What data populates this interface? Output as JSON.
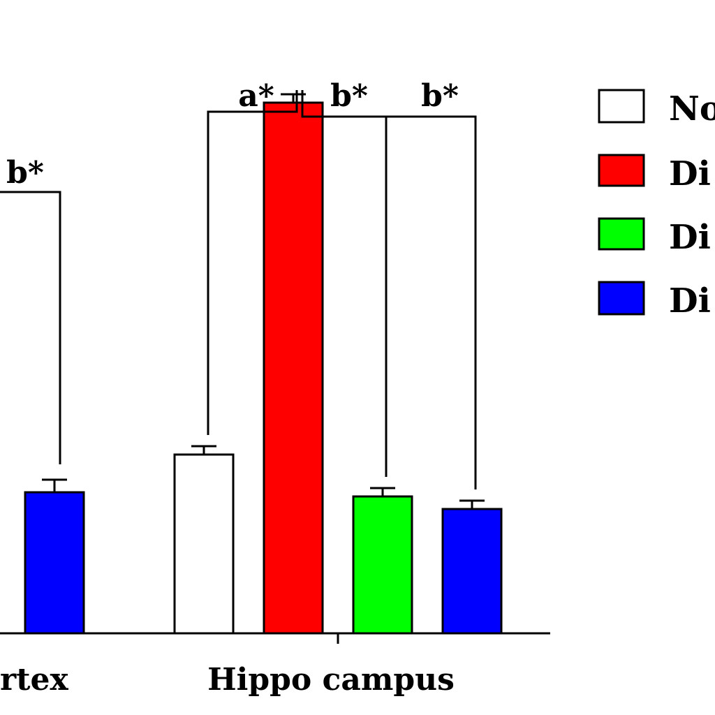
{
  "chart_data": {
    "type": "bar",
    "title": "",
    "xlabel": "",
    "ylabel": "",
    "categories": [
      "rtex",
      "Hippo campus"
    ],
    "series": [
      {
        "name": "No",
        "color": "#ffffff",
        "values": [
          null,
          128
        ]
      },
      {
        "name": "Di",
        "color": "#ff0000",
        "values": [
          null,
          380
        ]
      },
      {
        "name": "Di",
        "color": "#00ff00",
        "values": [
          null,
          98
        ]
      },
      {
        "name": "Di",
        "color": "#0000ff",
        "values": [
          101,
          89
        ]
      }
    ],
    "error": [
      [
        null,
        6
      ],
      [
        null,
        6
      ],
      [
        null,
        6
      ],
      [
        null,
        6
      ]
    ],
    "error_cortex_blue": 9,
    "ylim": [
      0,
      400
    ],
    "legend_position": "right",
    "annotations": [
      {
        "label": "b*",
        "group": 0
      },
      {
        "label": "a*",
        "group": 1
      },
      {
        "label": "b*",
        "group": 1
      },
      {
        "label": "b*",
        "group": 1
      }
    ],
    "grid": false
  }
}
